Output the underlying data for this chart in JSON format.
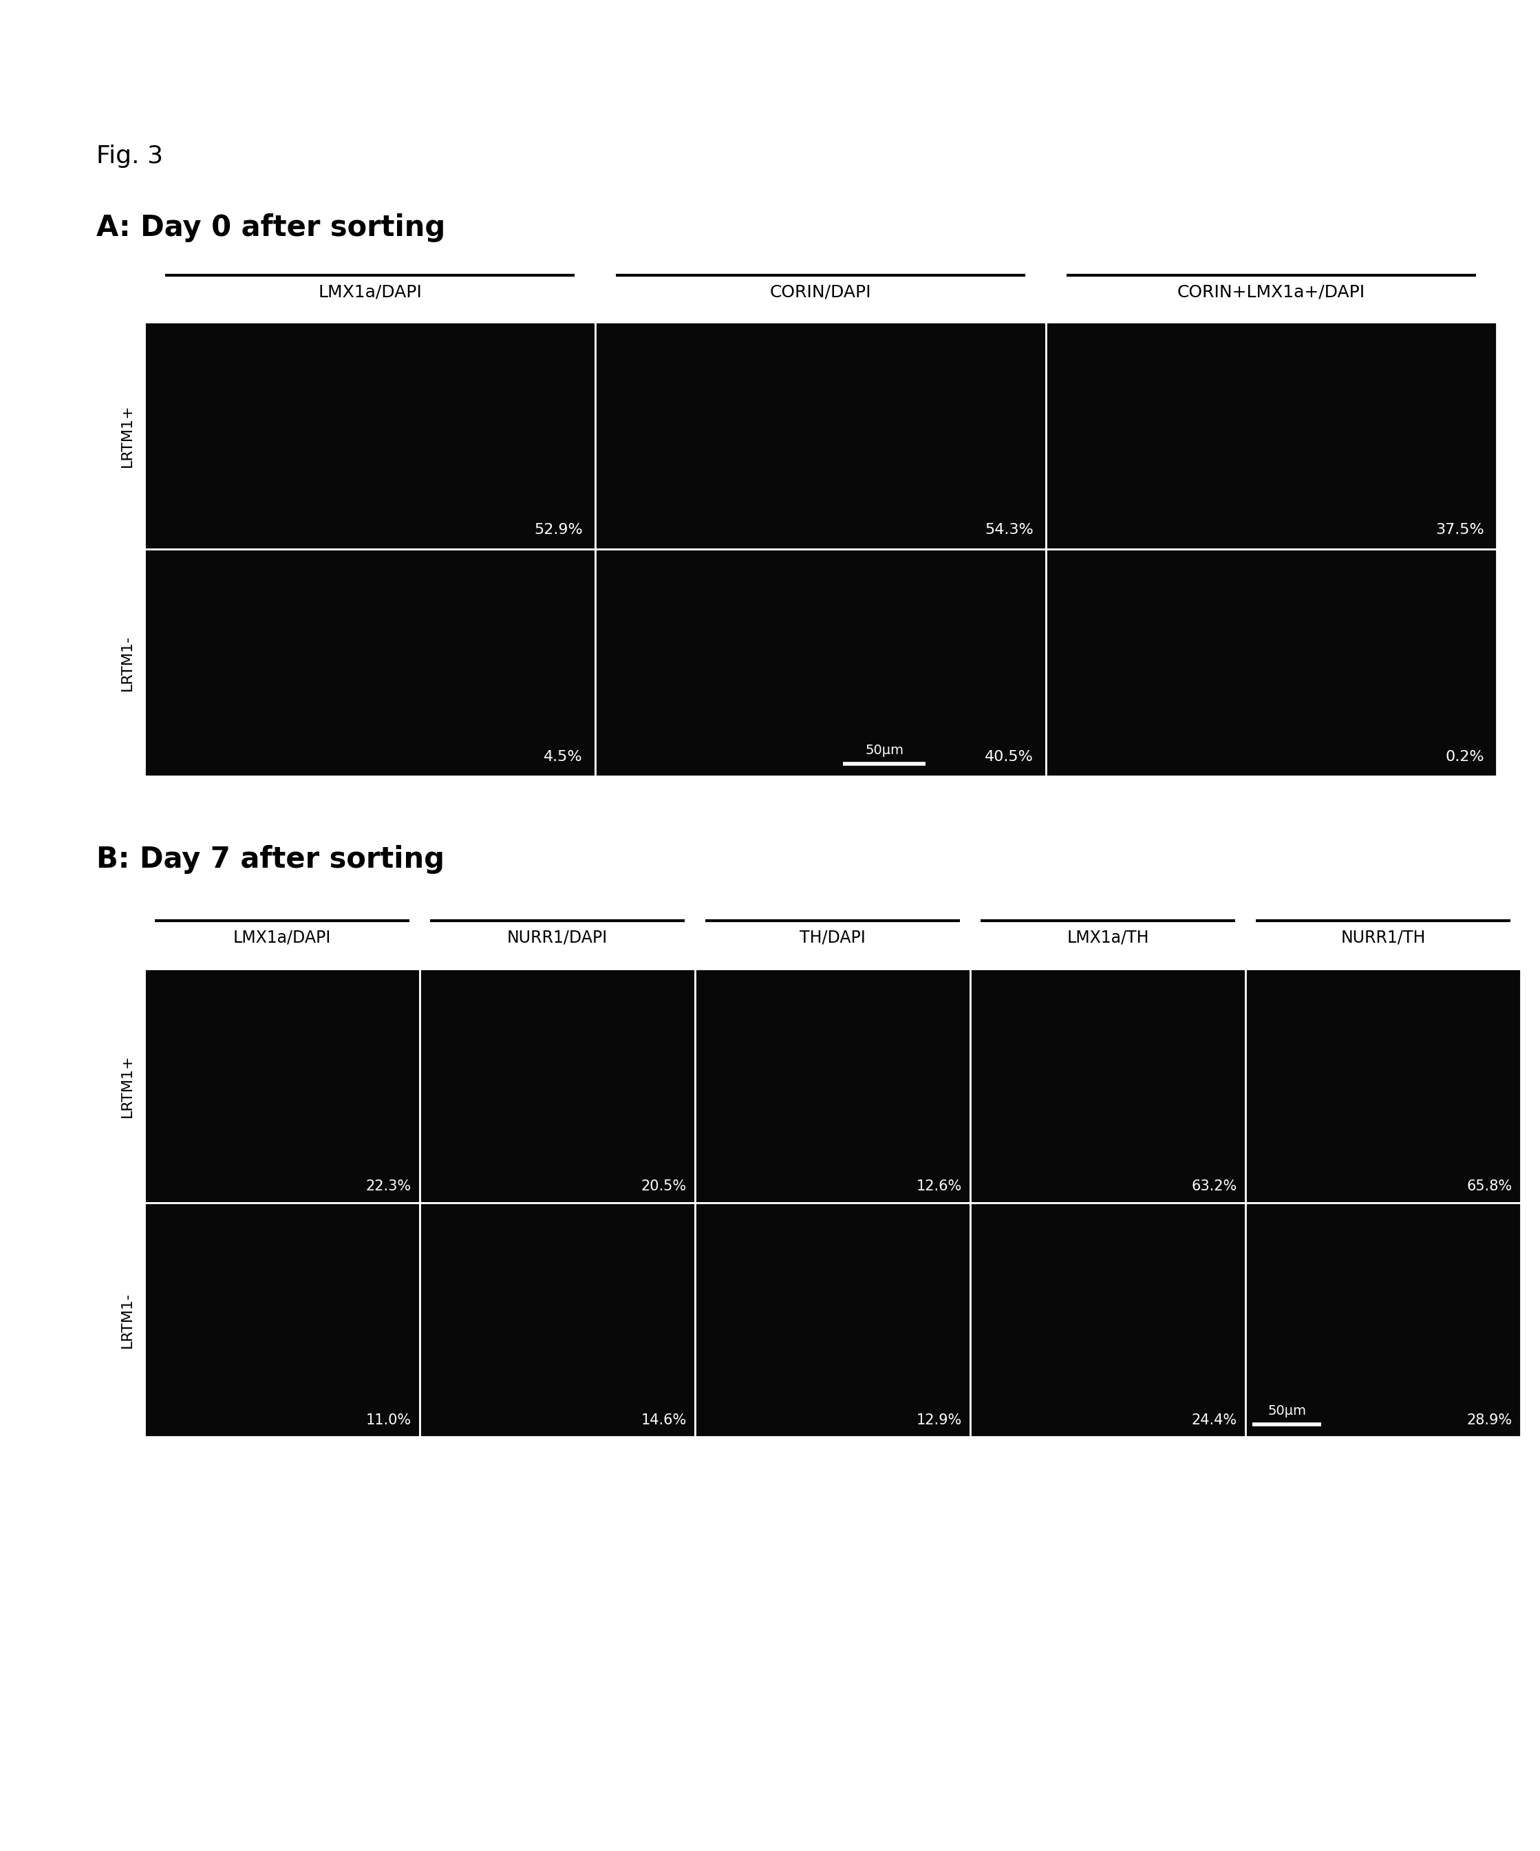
{
  "fig_label": "Fig. 3",
  "panel_A_title": "A: Day 0 after sorting",
  "panel_B_title": "B: Day 7 after sorting",
  "panel_A_col_labels": [
    "LMX1a/DAPI",
    "CORIN/DAPI",
    "CORIN+LMX1a+/DAPI"
  ],
  "panel_B_col_labels": [
    "LMX1a/DAPI",
    "NURR1/DAPI",
    "TH/DAPI",
    "LMX1a/TH",
    "NURR1/TH"
  ],
  "panel_A_row_labels": [
    "LRTM1+",
    "LRTM1-"
  ],
  "panel_B_row_labels": [
    "LRTM1+",
    "LRTM1-"
  ],
  "panel_A_percentages": [
    [
      "52.9%",
      "54.3%",
      "37.5%"
    ],
    [
      "4.5%",
      "40.5%",
      "0.2%"
    ]
  ],
  "panel_B_percentages": [
    [
      "22.3%",
      "20.5%",
      "12.6%",
      "63.2%",
      "65.8%"
    ],
    [
      "11.0%",
      "14.6%",
      "12.9%",
      "24.4%",
      "28.9%"
    ]
  ],
  "scale_bar_A_text": "50μm",
  "scale_bar_B_text": "50μm",
  "bg_color": "#000000",
  "text_color": "#ffffff",
  "outer_bg": "#ffffff",
  "cell_color": "#080808",
  "border_color": "#ffffff",
  "title_color": "#000000",
  "label_color": "#000000",
  "fig_label_fontsize": 26,
  "panel_title_fontsize": 30,
  "col_label_fontsize": 18,
  "row_label_fontsize": 16,
  "pct_fontsize": 16,
  "scale_bar_fontsize": 14
}
